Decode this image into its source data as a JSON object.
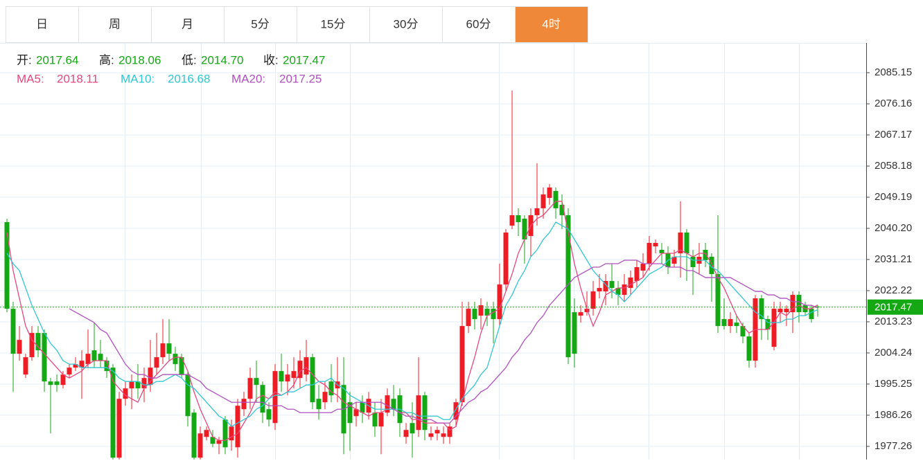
{
  "tabs": [
    "日",
    "周",
    "月",
    "5分",
    "15分",
    "30分",
    "60分",
    "4时"
  ],
  "active_tab": 7,
  "chart_data": {
    "type": "candlestick",
    "ohlc_labels": [
      "开:",
      "高:",
      "低:",
      "收:"
    ],
    "last_labels": [
      "2017.64",
      "2018.06",
      "2014.70",
      "2017.47"
    ],
    "up_color": "#ee1c25",
    "down_color": "#14a814",
    "ylim": [
      1973.46,
      2093.74
    ],
    "yticks": [
      2085.15,
      2076.16,
      2067.17,
      2058.18,
      2049.19,
      {
        "value": 2040.2,
        "label": "2040.20"
      },
      2031.21,
      2022.22,
      2013.23,
      2004.24,
      1995.25,
      1986.26,
      1977.26
    ],
    "grid": true,
    "open": [
      2042,
      2017,
      2004,
      1998,
      2003,
      2010,
      2010,
      1996,
      1996,
      1995,
      1998,
      2000,
      2000,
      2001,
      2005,
      2004,
      2002,
      2000,
      1974,
      1991,
      1994,
      1996,
      1994,
      1995,
      2000,
      2003,
      2007,
      2004,
      2003,
      1998,
      1987,
      1974,
      1980,
      1980,
      1978,
      1985,
      1979,
      1977,
      1988,
      1991,
      1997,
      1995,
      1988,
      1984,
      1999,
      1996,
      1997,
      1997,
      1998,
      2003,
      1991,
      1990,
      1996,
      1994,
      1995,
      1990,
      1986,
      1990,
      1987,
      1987,
      1983,
      1987,
      1991,
      1992,
      1980,
      1984,
      1982,
      1992,
      1980,
      1981,
      1980,
      1980,
      1985,
      1990,
      2012,
      2017,
      2015,
      2017,
      2017,
      2014,
      2024,
      2041,
      2044,
      2043,
      2038,
      2044,
      2046,
      2049,
      2051,
      2047,
      2044,
      2016,
      2015,
      2016,
      2017,
      2022,
      2022,
      2025,
      2023,
      2021,
      2023,
      2025,
      2028,
      2030,
      2035,
      2034,
      2033,
      2030,
      2033,
      2039,
      2032,
      2030,
      2034,
      2032,
      2027,
      2014,
      2012,
      2013,
      2012,
      2009,
      2002,
      2020,
      2014,
      2006,
      2016,
      2016,
      2016,
      2021,
      2018,
      2017,
      2017.64
    ],
    "high": [
      2043,
      2019,
      2012,
      2004,
      2012,
      2012,
      2011,
      1997,
      1998,
      1999,
      2001,
      2003,
      2005,
      2011,
      2013,
      2008,
      2003,
      2001,
      1993,
      1996,
      1998,
      2001,
      2000,
      2008,
      2010,
      2014,
      2014,
      2006,
      2004,
      1999,
      1988,
      1983,
      1983,
      1982,
      1980,
      1986,
      1985,
      1991,
      1993,
      2000,
      2002,
      1996,
      1990,
      2001,
      2004,
      2001,
      2003,
      2005,
      2008,
      2004,
      1995,
      1996,
      2001,
      2003,
      2003,
      1993,
      1990,
      1992,
      1993,
      1990,
      1991,
      1994,
      1995,
      1994,
      1984,
      1990,
      2003,
      1993,
      1983,
      1983,
      1983,
      1984,
      1991,
      2019,
      2019,
      2019,
      2020,
      2019,
      2019,
      2030,
      2040,
      2080,
      2046,
      2044,
      2046,
      2059,
      2052,
      2053,
      2052,
      2050,
      2046,
      2020,
      2018,
      2022,
      2025,
      2027,
      2027,
      2030,
      2025,
      2027,
      2028,
      2031,
      2033,
      2038,
      2037,
      2036,
      2035,
      2034,
      2048,
      2040,
      2034,
      2036,
      2036,
      2033,
      2044,
      2020,
      2016,
      2015,
      2013,
      2010,
      2021,
      2021,
      2015,
      2019,
      2019,
      2018,
      2022,
      2022,
      2019,
      2018,
      2018.06
    ],
    "low": [
      2016,
      1993,
      2002,
      1997,
      2002,
      2003,
      1993,
      1981,
      1993,
      1994,
      1997,
      1999,
      1991,
      2000,
      2000,
      2000,
      1997,
      1973,
      1973,
      1989,
      1988,
      1991,
      1990,
      1993,
      1998,
      2001,
      2002,
      1999,
      1997,
      1983,
      1973,
      1973,
      1979,
      1977,
      1975,
      1975,
      1976,
      1974,
      1986,
      1988,
      1990,
      1984,
      1983,
      1982,
      1993,
      1992,
      1994,
      1994,
      1996,
      1988,
      1985,
      1988,
      1990,
      1990,
      1975,
      1976,
      1983,
      1984,
      1985,
      1980,
      1975,
      1986,
      1986,
      1980,
      1978,
      1974,
      1980,
      1979,
      1979,
      1979,
      1978,
      1978,
      1983,
      1989,
      2010,
      2011,
      2011,
      2012,
      2007,
      2012,
      2022,
      2040,
      2038,
      2030,
      2032,
      2041,
      2043,
      2047,
      2043,
      2040,
      2001,
      2000,
      2013,
      2015,
      2015,
      2020,
      2018,
      2020,
      2018,
      2019,
      2021,
      2023,
      2026,
      2028,
      2033,
      2030,
      2027,
      2029,
      2026,
      2025,
      2021,
      2027,
      2029,
      2019,
      2010,
      2011,
      2010,
      2010,
      2007,
      2000,
      2000,
      2008,
      2008,
      2005,
      2013,
      2012,
      2010,
      2013,
      2015,
      2013,
      2014.7
    ],
    "close": [
      2017,
      2004,
      2008,
      2003,
      2010,
      2005,
      1996,
      1995,
      1995,
      1998,
      2000,
      2001,
      2002,
      2004,
      2002,
      2002,
      1999,
      1974,
      1991,
      1994,
      1996,
      1994,
      1997,
      2000,
      2003,
      2007,
      2004,
      2001,
      1998,
      1986,
      1974,
      1981,
      1982,
      1978,
      1979,
      1977,
      1983,
      1989,
      1991,
      1997,
      1995,
      1987,
      1985,
      1999,
      1996,
      1998,
      1999,
      2002,
      2003,
      1990,
      1988,
      1993,
      1992,
      1996,
      1981,
      1984,
      1988,
      1987,
      1991,
      1983,
      1987,
      1992,
      1988,
      1984,
      1982,
      1981,
      1992,
      1982,
      1981,
      1982,
      1981,
      1983,
      1990,
      2012,
      2017,
      2014,
      2018,
      2015,
      2014,
      2024,
      2039,
      2044,
      2042,
      2037,
      2044,
      2046,
      2050,
      2052,
      2046,
      2044,
      2003,
      2004,
      2016,
      2017,
      2022,
      2023,
      2025,
      2023,
      2021,
      2024,
      2026,
      2029,
      2030,
      2036,
      2036,
      2033,
      2029,
      2032,
      2039,
      2033,
      2029,
      2032,
      2031,
      2027,
      2012,
      2012,
      2014,
      2012,
      2009,
      2002,
      2020,
      2014,
      2011,
      2017,
      2017,
      2017,
      2021,
      2016,
      2016,
      2014,
      2017.47
    ],
    "series": [
      {
        "name": "MA5:",
        "color": "#e8467e",
        "values": [
          2039,
          2028,
          2020,
          2012,
          2008,
          2006,
          2004,
          2002,
          2000,
          1998,
          1997,
          1998,
          1999,
          2001,
          2002,
          2002,
          2002,
          1996,
          1994,
          1992,
          1991,
          1990,
          1994,
          1996,
          1998,
          2000,
          2002,
          2003,
          2003,
          1999,
          1993,
          1988,
          1984,
          1980,
          1979,
          1979,
          1980,
          1981,
          1984,
          1987,
          1991,
          1992,
          1991,
          1993,
          1992,
          1993,
          1995,
          1999,
          2000,
          1998,
          1996,
          1995,
          1993,
          1992,
          1990,
          1989,
          1988,
          1987,
          1986,
          1987,
          1987,
          1988,
          1988,
          1987,
          1987,
          1985,
          1985,
          1984,
          1984,
          1984,
          1984,
          1982,
          1983,
          1990,
          1997,
          2003,
          2010,
          2015,
          2016,
          2017,
          2022,
          2027,
          2033,
          2037,
          2041,
          2043,
          2044,
          2046,
          2048,
          2048,
          2039,
          2030,
          2023,
          2017,
          2012,
          2016,
          2021,
          2022,
          2023,
          2023,
          2024,
          2025,
          2026,
          2029,
          2031,
          2033,
          2033,
          2033,
          2034,
          2033,
          2032,
          2033,
          2033,
          2030,
          2026,
          2023,
          2019,
          2015,
          2012,
          2010,
          2011,
          2011,
          2011,
          2013,
          2016,
          2015,
          2017,
          2018,
          2017,
          2017,
          2018.11
        ]
      },
      {
        "name": "MA10:",
        "color": "#2fc6d4",
        "values": [
          2033,
          2030,
          2028,
          2023,
          2018,
          2014,
          2010,
          2007,
          2005,
          2002,
          2001,
          2001,
          2000,
          2000,
          2000,
          2000,
          2000,
          1999,
          1997,
          1996,
          1996,
          1996,
          1995,
          1995,
          1996,
          1996,
          1997,
          1998,
          1997,
          1995,
          1994,
          1992,
          1990,
          1988,
          1986,
          1985,
          1983,
          1984,
          1985,
          1986,
          1988,
          1989,
          1991,
          1992,
          1992,
          1993,
          1993,
          1994,
          1995,
          1995,
          1996,
          1996,
          1997,
          1995,
          1994,
          1992,
          1991,
          1990,
          1989,
          1988,
          1988,
          1988,
          1988,
          1988,
          1987,
          1987,
          1986,
          1986,
          1986,
          1986,
          1985,
          1985,
          1988,
          1991,
          1993,
          1995,
          1998,
          2000,
          2006,
          2012,
          2018,
          2021,
          2025,
          2028,
          2032,
          2034,
          2037,
          2039,
          2042,
          2041,
          2040,
          2037,
          2034,
          2031,
          2028,
          2026,
          2024,
          2022,
          2021,
          2019,
          2021,
          2023,
          2025,
          2027,
          2028,
          2029,
          2031,
          2032,
          2032,
          2032,
          2031,
          2031,
          2031,
          2029,
          2028,
          2026,
          2024,
          2022,
          2020,
          2018,
          2016,
          2015,
          2013,
          2013,
          2013,
          2014,
          2014,
          2015,
          2015,
          2016,
          2016.68
        ]
      },
      {
        "name": "MA20:",
        "color": "#b04fc0",
        "values": [
          null,
          null,
          null,
          null,
          null,
          null,
          null,
          null,
          null,
          null,
          2017,
          2016,
          2015,
          2014,
          2013,
          2011,
          2010,
          2007,
          2004,
          2001,
          1999,
          1998,
          1998,
          1997,
          1997,
          1998,
          1998,
          1998,
          1998,
          1998,
          1997,
          1996,
          1994,
          1993,
          1992,
          1991,
          1990,
          1990,
          1990,
          1990,
          1990,
          1990,
          1989,
          1989,
          1989,
          1988,
          1988,
          1987,
          1987,
          1987,
          1987,
          1987,
          1987,
          1988,
          1988,
          1989,
          1990,
          1990,
          1990,
          1990,
          1990,
          1989,
          1988,
          1987,
          1986,
          1986,
          1985,
          1985,
          1985,
          1984,
          1984,
          1984,
          1986,
          1988,
          1990,
          1991,
          1993,
          1994,
          1996,
          1998,
          2000,
          2003,
          2005,
          2008,
          2010,
          2013,
          2015,
          2018,
          2020,
          2022,
          2024,
          2026,
          2027,
          2028,
          2029,
          2029,
          2030,
          2030,
          2030,
          2031,
          2031,
          2031,
          2030,
          2030,
          2030,
          2030,
          2029,
          2029,
          2029,
          2028,
          2028,
          2027,
          2026,
          2026,
          2026,
          2026,
          2026,
          2025,
          2024,
          2023,
          2022,
          2022,
          2021,
          2021,
          2020,
          2020,
          2019,
          2019,
          2018,
          2018,
          2017.25
        ]
      }
    ]
  }
}
